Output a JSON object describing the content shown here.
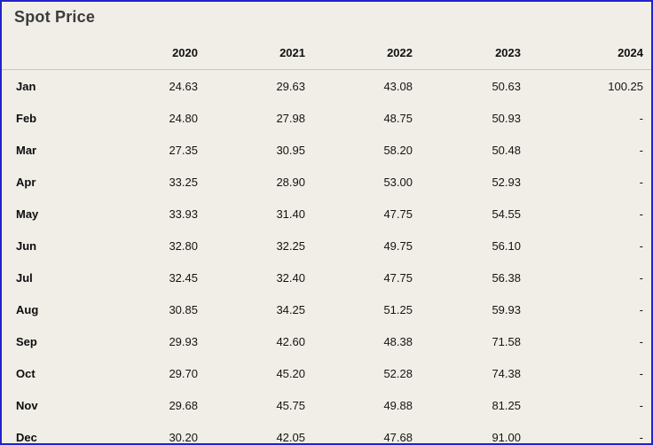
{
  "window": {
    "title": "Spot Price"
  },
  "colors": {
    "window_border": "#2222cc",
    "background": "#f0eee7",
    "title_text": "#3b3b3b",
    "body_text": "#141414",
    "header_underline": "#cbc7be"
  },
  "chart_data": {
    "type": "table",
    "title": "Spot Price",
    "columns": [
      "",
      "2020",
      "2021",
      "2022",
      "2023",
      "2024"
    ],
    "rows": [
      {
        "month": "Jan",
        "values": [
          "24.63",
          "29.63",
          "43.08",
          "50.63",
          "100.25"
        ]
      },
      {
        "month": "Feb",
        "values": [
          "24.80",
          "27.98",
          "48.75",
          "50.93",
          "-"
        ]
      },
      {
        "month": "Mar",
        "values": [
          "27.35",
          "30.95",
          "58.20",
          "50.48",
          "-"
        ]
      },
      {
        "month": "Apr",
        "values": [
          "33.25",
          "28.90",
          "53.00",
          "52.93",
          "-"
        ]
      },
      {
        "month": "May",
        "values": [
          "33.93",
          "31.40",
          "47.75",
          "54.55",
          "-"
        ]
      },
      {
        "month": "Jun",
        "values": [
          "32.80",
          "32.25",
          "49.75",
          "56.10",
          "-"
        ]
      },
      {
        "month": "Jul",
        "values": [
          "32.45",
          "32.40",
          "47.75",
          "56.38",
          "-"
        ]
      },
      {
        "month": "Aug",
        "values": [
          "30.85",
          "34.25",
          "51.25",
          "59.93",
          "-"
        ]
      },
      {
        "month": "Sep",
        "values": [
          "29.93",
          "42.60",
          "48.38",
          "71.58",
          "-"
        ]
      },
      {
        "month": "Oct",
        "values": [
          "29.70",
          "45.20",
          "52.28",
          "74.38",
          "-"
        ]
      },
      {
        "month": "Nov",
        "values": [
          "29.68",
          "45.75",
          "49.88",
          "81.25",
          "-"
        ]
      },
      {
        "month": "Dec",
        "values": [
          "30.20",
          "42.05",
          "47.68",
          "91.00",
          "-"
        ]
      }
    ]
  }
}
